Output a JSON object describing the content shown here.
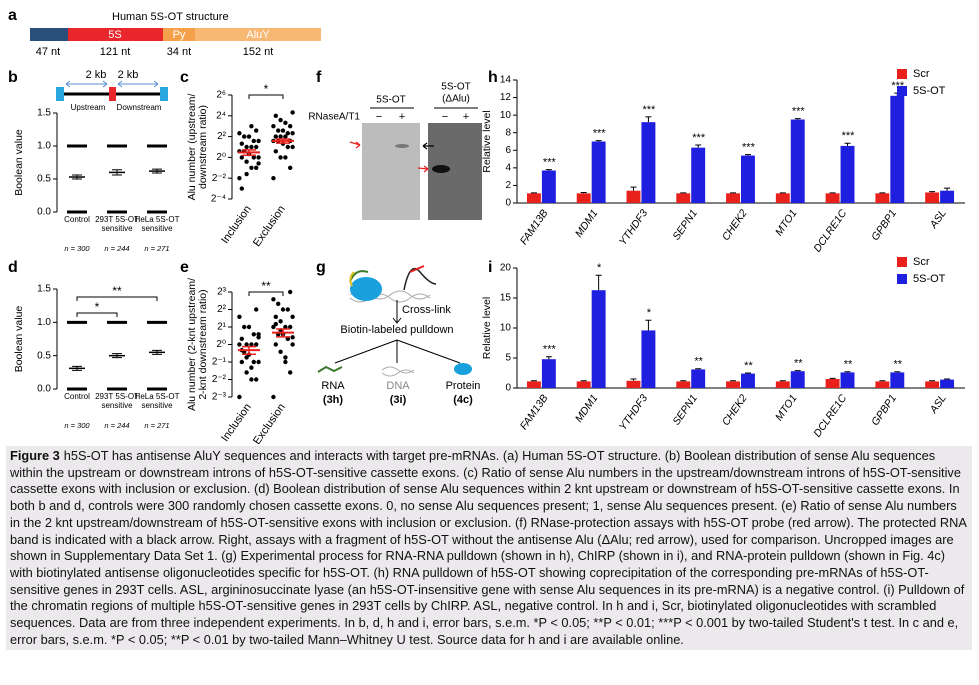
{
  "panel_a": {
    "label": "a",
    "title": "Human 5S-OT structure",
    "segments": [
      {
        "length": "47 nt"
      },
      {
        "name": "5S",
        "length": "121 nt"
      },
      {
        "name": "Py",
        "length": "34 nt"
      },
      {
        "name": "AluY",
        "length": "152 nt"
      }
    ]
  },
  "gene_diagram": {
    "distances": [
      "2 kb",
      "2 kb"
    ],
    "regions": [
      "Upstream",
      "Downstream"
    ]
  },
  "panel_f": {
    "label": "f",
    "treatment": "RNaseA/T1",
    "lanes": [
      {
        "title": "5S-OT",
        "conditions": [
          "−",
          "+"
        ]
      },
      {
        "title": "5S-OT",
        "subtitle": "(ΔAlu)",
        "conditions": [
          "−",
          "+"
        ]
      }
    ]
  },
  "panel_g": {
    "label": "g",
    "steps": [
      "Cross-link",
      "Biotin-labeled pulldown"
    ],
    "outputs": [
      {
        "name": "RNA",
        "ref": "(3h)"
      },
      {
        "name": "DNA",
        "ref": "(3i)"
      },
      {
        "name": "Protein",
        "ref": "(4c)"
      }
    ]
  },
  "chart_data": [
    {
      "type": "dot",
      "panel": "b",
      "ylabel": "Boolean value",
      "categories": [
        "Control",
        "293T 5S-OT sensitive",
        "HeLa 5S-OT sensitive"
      ],
      "n_labels": [
        "n = 300",
        "n = 244",
        "n = 271"
      ],
      "levels": [
        0,
        1
      ],
      "values": [
        0.53,
        0.6,
        0.62
      ],
      "errors": [
        0.03,
        0.04,
        0.03
      ],
      "ylim": [
        0,
        1.5
      ],
      "yticks": [
        {
          "value": 0,
          "label": "0.0"
        },
        0.5,
        {
          "value": 1,
          "label": "1.0"
        },
        1.5
      ]
    },
    {
      "type": "scatter",
      "panel": "c",
      "ylabel": [
        "Alu number (upstream/",
        "downstream ratio)"
      ],
      "yscale": "log2",
      "categories": [
        "Inclusion",
        "Exclusion"
      ],
      "points": [
        [
          0.25,
          0.5,
          0.5,
          0.75,
          1,
          1,
          1,
          1.25,
          1.5,
          1.5,
          2,
          2,
          2,
          2.5,
          3,
          3,
          4,
          4,
          5,
          6,
          8,
          0.33,
          0.125,
          0.67
        ],
        [
          0.25,
          0.5,
          1,
          1,
          1.5,
          2,
          2,
          2.5,
          3,
          3,
          3,
          4,
          4,
          4,
          5,
          5,
          6,
          6,
          8,
          8,
          10,
          12,
          16,
          20
        ]
      ],
      "values": [
        1.4,
        3.0
      ],
      "errors": [
        0.25,
        0.4
      ],
      "mean_color": "#e8211d",
      "brackets": [
        {
          "from": 0,
          "to": 1,
          "label": "*"
        }
      ],
      "ylim": [
        0.0625,
        64
      ],
      "yticks": [
        {
          "value": 64,
          "label": "2⁶"
        },
        {
          "value": 16,
          "label": "2⁴"
        },
        {
          "value": 4,
          "label": "2²"
        },
        {
          "value": 1,
          "label": "2⁰"
        },
        {
          "value": 0.25,
          "label": "2⁻²"
        },
        {
          "value": 0.0625,
          "label": "2⁻⁴"
        }
      ]
    },
    {
      "type": "dot",
      "panel": "d",
      "ylabel": "Boolean value",
      "categories": [
        "Control",
        "293T 5S-OT sensitive",
        "HeLa 5S-OT sensitive"
      ],
      "n_labels": [
        "n = 300",
        "n = 244",
        "n = 271"
      ],
      "levels": [
        0,
        1
      ],
      "values": [
        0.31,
        0.5,
        0.55
      ],
      "errors": [
        0.03,
        0.03,
        0.03
      ],
      "brackets": [
        {
          "from": 0,
          "to": 2,
          "label": "**"
        },
        {
          "from": 0,
          "to": 1,
          "label": "*"
        }
      ],
      "ylim": [
        0,
        1.5
      ],
      "yticks": [
        {
          "value": 0,
          "label": "0.0"
        },
        0.5,
        {
          "value": 1,
          "label": "1.0"
        },
        1.5
      ]
    },
    {
      "type": "scatter",
      "panel": "e",
      "ylabel": [
        "Alu number (2-knt upstream/",
        "2-knt downstream ratio)"
      ],
      "yscale": "log2",
      "categories": [
        "Inclusion",
        "Exclusion"
      ],
      "points": [
        [
          0.125,
          0.25,
          0.25,
          0.33,
          0.5,
          0.5,
          0.5,
          0.67,
          0.75,
          1,
          1,
          1,
          1,
          1.25,
          1.5,
          1.5,
          2,
          2,
          3,
          4,
          0.4,
          0.6,
          0.8,
          1.33
        ],
        [
          0.125,
          0.33,
          0.5,
          0.75,
          1,
          1,
          1.25,
          1.5,
          1.5,
          2,
          2,
          2,
          2.5,
          3,
          3,
          4,
          4,
          5,
          6,
          8,
          0.6,
          1.75,
          2.25,
          1.33
        ]
      ],
      "values": [
        0.8,
        1.6
      ],
      "errors": [
        0.12,
        0.25
      ],
      "mean_color": "#e8211d",
      "brackets": [
        {
          "from": 0,
          "to": 1,
          "label": "**"
        }
      ],
      "ylim": [
        0.125,
        8
      ],
      "yticks": [
        {
          "value": 8,
          "label": "2³"
        },
        {
          "value": 4,
          "label": "2²"
        },
        {
          "value": 2,
          "label": "2¹"
        },
        {
          "value": 1,
          "label": "2⁰"
        },
        {
          "value": 0.5,
          "label": "2⁻¹"
        },
        {
          "value": 0.25,
          "label": "2⁻²"
        },
        {
          "value": 0.125,
          "label": "2⁻³"
        }
      ]
    },
    {
      "type": "bar",
      "panel": "h",
      "ylabel": "Relative level",
      "legend": "upper right",
      "categories": [
        "FAM13B",
        "MDM1",
        "YTHDF3",
        "SEPN1",
        "CHEK2",
        "MTO1",
        "DCLRE1C",
        "GPBP1",
        "ASL"
      ],
      "series": [
        {
          "name": "Scr",
          "color": "#e8211d",
          "values": [
            1.1,
            1.1,
            1.4,
            1.1,
            1.1,
            1.1,
            1.1,
            1.1,
            1.2
          ],
          "errors": [
            0.05,
            0.1,
            0.4,
            0.05,
            0.05,
            0.05,
            0.05,
            0.05,
            0.1
          ]
        },
        {
          "name": "5S-OT",
          "color": "#1f1fe0",
          "values": [
            3.7,
            7.0,
            9.2,
            6.3,
            5.4,
            9.5,
            6.5,
            12.2,
            1.4
          ],
          "errors": [
            0.1,
            0.1,
            0.6,
            0.3,
            0.1,
            0.1,
            0.3,
            0.3,
            0.3
          ]
        }
      ],
      "significance": [
        "***",
        "***",
        "***",
        "***",
        "***",
        "***",
        "***",
        "***",
        null
      ],
      "ylim": [
        0,
        14
      ],
      "yticks": [
        0,
        2,
        4,
        6,
        8,
        10,
        12,
        14
      ]
    },
    {
      "type": "bar",
      "panel": "i",
      "ylabel": "Relative level",
      "legend": "upper right",
      "categories": [
        "FAM13B",
        "MDM1",
        "YTHDF3",
        "SEPN1",
        "CHEK2",
        "MTO1",
        "DCLRE1C",
        "GPBP1",
        "ASL"
      ],
      "series": [
        {
          "name": "Scr",
          "color": "#e8211d",
          "values": [
            1.1,
            1.1,
            1.2,
            1.1,
            1.1,
            1.1,
            1.5,
            1.1,
            1.1
          ],
          "errors": [
            0.1,
            0.1,
            0.3,
            0.1,
            0.1,
            0.1,
            0.1,
            0.1,
            0.1
          ]
        },
        {
          "name": "5S-OT",
          "color": "#1f1fe0",
          "values": [
            4.8,
            16.3,
            9.6,
            3.1,
            2.4,
            2.8,
            2.6,
            2.6,
            1.4
          ],
          "errors": [
            0.4,
            2.5,
            1.7,
            0.1,
            0.1,
            0.1,
            0.1,
            0.1,
            0.1
          ]
        }
      ],
      "significance": [
        "***",
        "*",
        "*",
        "**",
        "**",
        "**",
        "**",
        "**",
        null
      ],
      "ylim": [
        0,
        20
      ],
      "yticks": [
        0,
        5,
        10,
        15,
        20
      ]
    }
  ],
  "caption": {
    "label": "Figure 3",
    "text": "h5S-OT has antisense AluY sequences and interacts with target pre-mRNAs. (a) Human 5S-OT structure. (b) Boolean distribution of sense Alu sequences within the upstream or downstream introns of h5S-OT-sensitive cassette exons. (c) Ratio of sense Alu numbers in the upstream/downstream introns of h5S-OT-sensitive cassette exons with inclusion or exclusion. (d) Boolean distribution of sense Alu sequences within 2 knt upstream or downstream of h5S-OT-sensitive cassette exons. In both b and d, controls were 300 randomly chosen cassette exons. 0, no sense Alu sequences present; 1, sense Alu sequences present. (e) Ratio of sense Alu numbers in the 2 knt upstream/downstream of h5S-OT-sensitive exons with inclusion or exclusion. (f) RNase-protection assays with h5S-OT probe (red arrow). The protected RNA band is indicated with a black arrow. Right, assays with a fragment of h5S-OT without the antisense Alu (ΔAlu; red arrow), used for comparison. Uncropped images are shown in Supplementary Data Set 1. (g) Experimental process for RNA-RNA pulldown (shown in h), ChIRP (shown in i), and RNA-protein pulldown (shown in Fig. 4c) with biotinylated antisense oligonucleotides specific for h5S-OT. (h) RNA pulldown of h5S-OT showing coprecipitation of the corresponding pre-mRNAs of h5S-OT-sensitive genes in 293T cells. ASL, argininosuccinate lyase (an h5S-OT-insensitive gene with sense Alu sequences in its pre-mRNA) is a negative control. (i) Pulldown of the chromatin regions of multiple h5S-OT-sensitive genes in 293T cells by ChIRP. ASL, negative control. In h and i, Scr, biotinylated oligonucleotides with scrambled sequences. Data are from three independent experiments. In b, d, h and i, error bars, s.e.m. *P < 0.05; **P < 0.01; ***P < 0.001 by two-tailed Student's t test. In c and e, error bars, s.e.m. *P < 0.05; **P < 0.01 by two-tailed Mann–Whitney U test. Source data for h and i are available online."
  }
}
